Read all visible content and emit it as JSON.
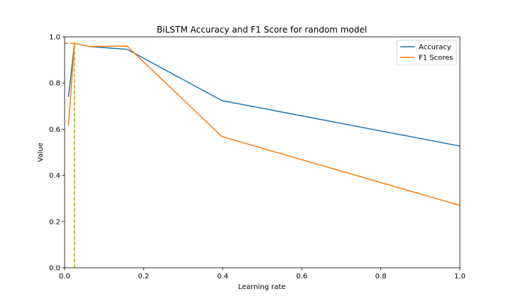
{
  "chart_data": {
    "type": "line",
    "title": "BiLSTM Accuracy and F1 Score for random model",
    "xlabel": "Learning rate",
    "ylabel": "Value",
    "xlim": [
      0.0,
      1.0
    ],
    "ylim": [
      0.0,
      1.0
    ],
    "xticks": [
      "0.0",
      "0.2",
      "0.4",
      "0.6",
      "0.8",
      "1.0"
    ],
    "yticks": [
      "0.0",
      "0.2",
      "0.4",
      "0.6",
      "0.8",
      "1.0"
    ],
    "grid": false,
    "legend_position": "top-right",
    "series": [
      {
        "name": "Accuracy",
        "color": "#1f77b4",
        "x": [
          0.01,
          0.025,
          0.063,
          0.158,
          0.398,
          1.0
        ],
        "y": [
          0.74,
          0.972,
          0.958,
          0.946,
          0.724,
          0.527
        ]
      },
      {
        "name": "F1 Scores",
        "color": "#ff7f0e",
        "x": [
          0.01,
          0.025,
          0.063,
          0.158,
          0.398,
          1.0
        ],
        "y": [
          0.615,
          0.972,
          0.958,
          0.96,
          0.568,
          0.27
        ]
      }
    ],
    "reference_lines": [
      {
        "kind": "vertical",
        "x": 0.025,
        "y_to": 0.972,
        "color": "#ff7f0e",
        "style": "dashed"
      },
      {
        "kind": "horizontal",
        "y": 0.972,
        "x_to": 0.025,
        "color": "#ff7f0e",
        "style": "dashed"
      },
      {
        "kind": "vertical",
        "x": 0.025,
        "y_to": 0.972,
        "color": "#bcbd22",
        "style": "dashed"
      }
    ]
  }
}
